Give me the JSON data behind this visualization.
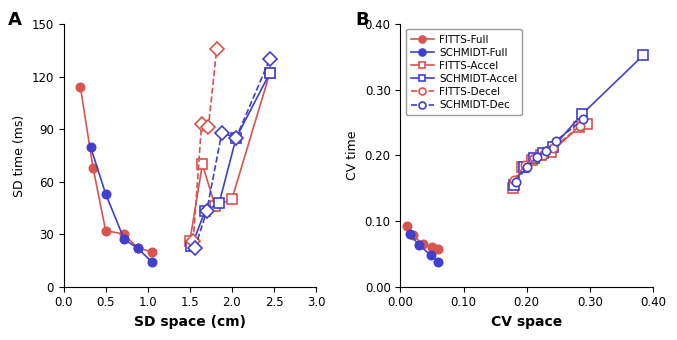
{
  "panel_A": {
    "title": "A",
    "xlabel": "SD space (cm)",
    "ylabel": "SD time (ms)",
    "xlim": [
      0.0,
      3.0
    ],
    "ylim": [
      0,
      150
    ],
    "xticks": [
      0.0,
      0.5,
      1.0,
      1.5,
      2.0,
      2.5,
      3.0
    ],
    "yticks": [
      0,
      30,
      60,
      90,
      120,
      150
    ],
    "series": [
      {
        "name": "FITTS-Full",
        "x": [
          0.2,
          0.35,
          0.5,
          0.72,
          0.88,
          1.05
        ],
        "y": [
          114,
          68,
          32,
          30,
          22,
          20
        ],
        "color": "#D9534F",
        "marker": "o",
        "linestyle": "-",
        "markersize": 6,
        "filled": true,
        "zorder": 3
      },
      {
        "name": "SCHMIDT-Full",
        "x": [
          0.32,
          0.5,
          0.72,
          0.88,
          1.05
        ],
        "y": [
          80,
          53,
          27,
          22,
          14
        ],
        "color": "#4040CC",
        "marker": "o",
        "linestyle": "-",
        "markersize": 6,
        "filled": true,
        "zorder": 3
      },
      {
        "name": "FITTS-Accel",
        "x": [
          1.5,
          1.65,
          1.8,
          2.0,
          2.45
        ],
        "y": [
          26,
          70,
          46,
          50,
          122
        ],
        "color": "#D9534F",
        "marker": "s",
        "linestyle": "-",
        "markersize": 7,
        "filled": false,
        "zorder": 2
      },
      {
        "name": "SCHMIDT-Accel",
        "x": [
          1.52,
          1.68,
          1.85,
          2.05,
          2.45
        ],
        "y": [
          23,
          43,
          48,
          85,
          122
        ],
        "color": "#4040CC",
        "marker": "s",
        "linestyle": "-",
        "markersize": 7,
        "filled": false,
        "zorder": 2
      },
      {
        "name": "FITTS-Decel",
        "x": [
          1.54,
          1.64,
          1.72,
          1.82
        ],
        "y": [
          26,
          93,
          91,
          136
        ],
        "color": "#D9534F",
        "marker": "D",
        "linestyle": "--",
        "markersize": 7,
        "filled": false,
        "zorder": 2
      },
      {
        "name": "SCHMIDT-Decel",
        "x": [
          1.56,
          1.7,
          1.88,
          2.05,
          2.45
        ],
        "y": [
          22,
          43,
          88,
          85,
          130
        ],
        "color": "#4040CC",
        "marker": "D",
        "linestyle": "--",
        "markersize": 7,
        "filled": false,
        "zorder": 2
      }
    ]
  },
  "panel_B": {
    "title": "B",
    "xlabel": "CV space",
    "ylabel": "CV time",
    "xlim": [
      0.0,
      0.4
    ],
    "ylim": [
      0.0,
      0.4
    ],
    "xticks": [
      0.0,
      0.1,
      0.2,
      0.3,
      0.4
    ],
    "yticks": [
      0.0,
      0.1,
      0.2,
      0.3,
      0.4
    ],
    "series": [
      {
        "name": "FITTS-Full",
        "x": [
          0.01,
          0.02,
          0.035,
          0.05,
          0.06
        ],
        "y": [
          0.093,
          0.078,
          0.065,
          0.06,
          0.057
        ],
        "color": "#D9534F",
        "marker": "o",
        "linestyle": "-",
        "markersize": 6,
        "filled": true,
        "zorder": 3
      },
      {
        "name": "SCHMIDT-Full",
        "x": [
          0.015,
          0.03,
          0.048,
          0.06
        ],
        "y": [
          0.08,
          0.063,
          0.048,
          0.038
        ],
        "color": "#4040CC",
        "marker": "o",
        "linestyle": "-",
        "markersize": 6,
        "filled": true,
        "zorder": 3
      },
      {
        "name": "FITTS-Accel",
        "x": [
          0.178,
          0.193,
          0.208,
          0.222,
          0.238,
          0.283,
          0.295
        ],
        "y": [
          0.15,
          0.183,
          0.193,
          0.2,
          0.205,
          0.243,
          0.248
        ],
        "color": "#D9534F",
        "marker": "s",
        "linestyle": "-",
        "markersize": 7,
        "filled": false,
        "zorder": 2
      },
      {
        "name": "SCHMIDT-Accel",
        "x": [
          0.18,
          0.196,
          0.212,
          0.226,
          0.242,
          0.288,
          0.385
        ],
        "y": [
          0.155,
          0.183,
          0.196,
          0.203,
          0.213,
          0.263,
          0.353
        ],
        "color": "#4040CC",
        "marker": "s",
        "linestyle": "-",
        "markersize": 7,
        "filled": false,
        "zorder": 2
      },
      {
        "name": "FITTS-Decel",
        "x": [
          0.18,
          0.197,
          0.212,
          0.226,
          0.242,
          0.285
        ],
        "y": [
          0.163,
          0.185,
          0.196,
          0.2,
          0.212,
          0.245
        ],
        "color": "#D9534F",
        "marker": "o",
        "linestyle": "--",
        "markersize": 6,
        "filled": false,
        "zorder": 2
      },
      {
        "name": "SCHMIDT-Dec",
        "x": [
          0.183,
          0.2,
          0.216,
          0.23,
          0.246,
          0.29
        ],
        "y": [
          0.16,
          0.182,
          0.198,
          0.206,
          0.222,
          0.255
        ],
        "color": "#4040CC",
        "marker": "o",
        "linestyle": "--",
        "markersize": 6,
        "filled": false,
        "zorder": 2
      }
    ],
    "legend_order": [
      "FITTS-Full",
      "SCHMIDT-Full",
      "FITTS-Accel",
      "SCHMIDT-Accel",
      "FITTS-Decel",
      "SCHMIDT-Dec"
    ]
  }
}
